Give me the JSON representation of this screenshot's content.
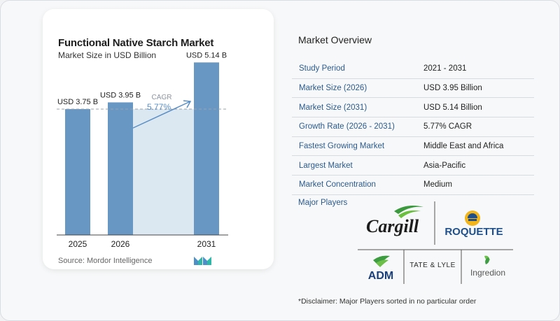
{
  "chart_data": {
    "type": "bar",
    "title": "Functional Native Starch Market",
    "subtitle": "Market Size in USD Billion",
    "categories": [
      "2025",
      "2026",
      "2031"
    ],
    "values": [
      3.75,
      3.95,
      5.14
    ],
    "value_labels": [
      "USD 3.75 B",
      "USD 3.95 B",
      "USD 5.14 B"
    ],
    "ylim": [
      0,
      5.5
    ],
    "grid": false,
    "cagr_label": "CAGR",
    "cagr_value": "5.77%",
    "colors": {
      "bar": "#6897c3",
      "shade": "#dbe7f1",
      "dashed": "#9aa3ad",
      "arrow": "#5b8fc4"
    }
  },
  "source": "Source: Mordor Intelligence",
  "overview": {
    "title": "Market Overview",
    "rows": [
      {
        "label": "Study Period",
        "value": "2021 - 2031"
      },
      {
        "label": "Market Size (2026)",
        "value": "USD 3.95 Billion"
      },
      {
        "label": "Market Size (2031)",
        "value": "USD 5.14 Billion"
      },
      {
        "label": "Growth Rate (2026 - 2031)",
        "value": "5.77% CAGR"
      },
      {
        "label": "Fastest Growing Market",
        "value": "Middle East and Africa"
      },
      {
        "label": "Largest Market",
        "value": "Asia-Pacific"
      },
      {
        "label": "Market Concentration",
        "value": "Medium"
      }
    ]
  },
  "players": {
    "label": "Major Players",
    "logos": [
      "Cargill",
      "ROQUETTE",
      "ADM",
      "TATE & LYLE",
      "Ingredion"
    ]
  },
  "disclaimer": "*Disclaimer: Major Players sorted in no particular order"
}
